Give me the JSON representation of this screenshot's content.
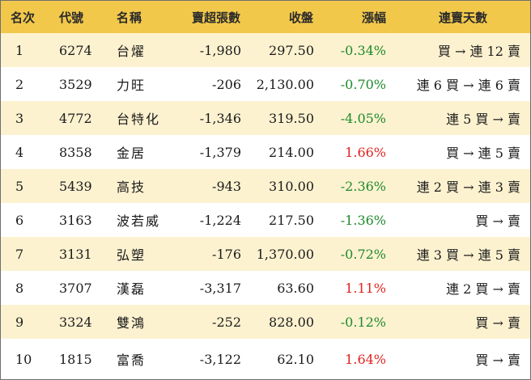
{
  "table": {
    "headers": {
      "rank": "名次",
      "code": "代號",
      "name": "名稱",
      "net": "賣超張數",
      "close": "收盤",
      "change": "漲幅",
      "streak": "連賣天數"
    },
    "rows": [
      {
        "rank": "1",
        "code": "6274",
        "name": "台燿",
        "net": "-1,980",
        "close": "297.50",
        "change": "-0.34%",
        "streak": "買 → 連 12 賣"
      },
      {
        "rank": "2",
        "code": "3529",
        "name": "力旺",
        "net": "-206",
        "close": "2,130.00",
        "change": "-0.70%",
        "streak": "連 6 買 → 連 6 賣"
      },
      {
        "rank": "3",
        "code": "4772",
        "name": "台特化",
        "net": "-1,346",
        "close": "319.50",
        "change": "-4.05%",
        "streak": "連 5 買 → 賣"
      },
      {
        "rank": "4",
        "code": "8358",
        "name": "金居",
        "net": "-1,379",
        "close": "214.00",
        "change": "1.66%",
        "streak": "買 → 連 5 賣"
      },
      {
        "rank": "5",
        "code": "5439",
        "name": "高技",
        "net": "-943",
        "close": "310.00",
        "change": "-2.36%",
        "streak": "連 2 買 → 連 3 賣"
      },
      {
        "rank": "6",
        "code": "3163",
        "name": "波若威",
        "net": "-1,224",
        "close": "217.50",
        "change": "-1.36%",
        "streak": "買 → 賣"
      },
      {
        "rank": "7",
        "code": "3131",
        "name": "弘塑",
        "net": "-176",
        "close": "1,370.00",
        "change": "-0.72%",
        "streak": "連 3 買 → 連 5 賣"
      },
      {
        "rank": "8",
        "code": "3707",
        "name": "漢磊",
        "net": "-3,317",
        "close": "63.60",
        "change": "1.11%",
        "streak": "連 2 買 → 賣"
      },
      {
        "rank": "9",
        "code": "3324",
        "name": "雙鴻",
        "net": "-252",
        "close": "828.00",
        "change": "-0.12%",
        "streak": "買 → 賣"
      },
      {
        "rank": "10",
        "code": "1815",
        "name": "富喬",
        "net": "-3,122",
        "close": "62.10",
        "change": "1.64%",
        "streak": "買 → 賣"
      }
    ]
  },
  "colors": {
    "header_bg": "#f2c84b",
    "band_bg": "#fdf2d0",
    "negative": "#1e8a2a",
    "positive": "#e0231e"
  }
}
